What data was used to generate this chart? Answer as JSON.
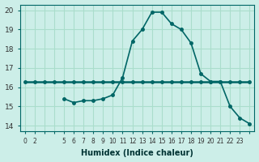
{
  "xlabel": "Humidex (Indice chaleur)",
  "ylabel": "",
  "background_color": "#cceee8",
  "grid_color": "#aaddcc",
  "line_color": "#006666",
  "marker_color": "#006666",
  "xlim": [
    -0.5,
    23.5
  ],
  "ylim": [
    13.7,
    20.3
  ],
  "yticks": [
    14,
    15,
    16,
    17,
    18,
    19,
    20
  ],
  "xtick_positions": [
    0,
    1,
    2,
    3,
    4,
    5,
    6,
    7,
    8,
    9,
    10,
    11,
    12,
    13,
    14,
    15,
    16,
    17,
    18,
    19,
    20,
    21,
    22,
    23
  ],
  "xtick_labels": [
    "0",
    "2",
    "",
    "",
    "5",
    "6",
    "7",
    "8",
    "9",
    "10",
    "11",
    "12",
    "13",
    "14",
    "15",
    "16",
    "17",
    "18",
    "19",
    "20",
    "21",
    "22",
    "23",
    ""
  ],
  "series1_x": [
    0,
    1,
    2,
    3,
    4,
    5,
    6,
    7,
    8,
    9,
    10,
    11,
    12,
    13,
    14,
    15,
    16,
    17,
    18,
    19,
    20,
    21,
    22,
    23
  ],
  "series1_y": [
    16.3,
    16.3,
    16.3,
    16.3,
    16.3,
    16.3,
    16.3,
    16.3,
    16.3,
    16.3,
    16.3,
    16.3,
    16.3,
    16.3,
    16.3,
    16.3,
    16.3,
    16.3,
    16.3,
    16.3,
    16.3,
    16.3,
    16.3,
    16.3
  ],
  "series2_x": [
    4,
    5,
    6,
    7,
    8,
    9,
    10,
    11,
    12,
    13,
    14,
    15,
    16,
    17,
    18,
    19,
    20,
    21,
    22,
    23
  ],
  "series2_y": [
    15.4,
    15.2,
    15.3,
    15.3,
    15.4,
    15.6,
    16.5,
    18.4,
    19.0,
    19.9,
    19.9,
    19.3,
    19.0,
    18.3,
    16.7,
    16.3,
    16.3,
    15.0,
    14.4,
    14.1
  ]
}
